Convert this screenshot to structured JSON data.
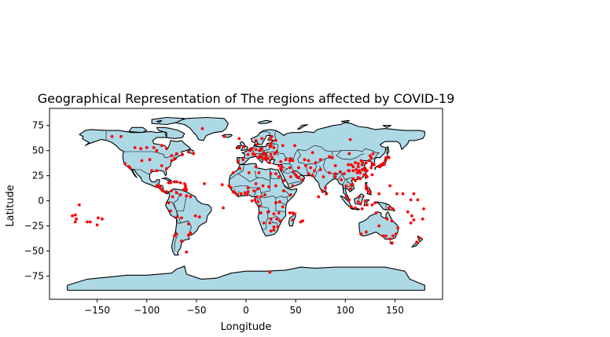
{
  "chart_data": {
    "type": "scatter",
    "title": "Geographical Representation of The regions affected by COVID-19",
    "xlabel": "Longitude",
    "ylabel": "Latitude",
    "xlim": [
      -198,
      198
    ],
    "ylim": [
      -98,
      92
    ],
    "xticks": [
      -150,
      -100,
      -50,
      0,
      50,
      100,
      150
    ],
    "yticks": [
      -75,
      -50,
      -25,
      0,
      25,
      50,
      75
    ],
    "xtick_labels": [
      "−150",
      "−100",
      "−50",
      "0",
      "50",
      "100",
      "150"
    ],
    "ytick_labels": [
      "−75",
      "−50",
      "−25",
      "0",
      "25",
      "50",
      "75"
    ],
    "grid": false,
    "basemap": {
      "land_color": "#add8e6",
      "edge_color": "#000000"
    },
    "series": [
      {
        "color": "#ff0000",
        "points": [
          [
            -135,
            64
          ],
          [
            -126,
            64
          ],
          [
            -112,
            53
          ],
          [
            -100,
            53
          ],
          [
            -93,
            53
          ],
          [
            -80,
            52
          ],
          [
            -70,
            47
          ],
          [
            -64,
            46
          ],
          [
            -58,
            49
          ],
          [
            -53,
            47
          ],
          [
            -85,
            55
          ],
          [
            -75,
            45
          ],
          [
            -90,
            50
          ],
          [
            -105,
            40
          ],
          [
            -97,
            41
          ],
          [
            -106,
            52
          ],
          [
            -85,
            35
          ],
          [
            -80,
            32
          ],
          [
            -90,
            30
          ],
          [
            -95,
            30
          ],
          [
            -75,
            40
          ],
          [
            -72,
            42
          ],
          [
            -122,
            37
          ],
          [
            -118,
            34
          ],
          [
            -117,
            33
          ],
          [
            -84,
            10
          ],
          [
            -88,
            15
          ],
          [
            -87,
            14
          ],
          [
            -90,
            15
          ],
          [
            -86,
            12
          ],
          [
            -80,
            9
          ],
          [
            -78,
            18
          ],
          [
            -76,
            18
          ],
          [
            -72,
            19
          ],
          [
            -70,
            19
          ],
          [
            -66,
            18
          ],
          [
            -61,
            15
          ],
          [
            -61,
            13
          ],
          [
            -62,
            17
          ],
          [
            -63,
            11
          ],
          [
            -60,
            11
          ],
          [
            -75,
            10
          ],
          [
            -74,
            4
          ],
          [
            -70,
            8
          ],
          [
            -66,
            6
          ],
          [
            -60,
            5
          ],
          [
            -56,
            4
          ],
          [
            -78,
            -2
          ],
          [
            -76,
            -10
          ],
          [
            -70,
            -16
          ],
          [
            -65,
            -17
          ],
          [
            -58,
            -23
          ],
          [
            -51,
            -15
          ],
          [
            -47,
            -16
          ],
          [
            -72,
            -35
          ],
          [
            -70,
            -33
          ],
          [
            -65,
            -40
          ],
          [
            -58,
            -34
          ],
          [
            -56,
            -32
          ],
          [
            -60,
            -51
          ],
          [
            -44,
            72
          ],
          [
            -42,
            17
          ],
          [
            -24,
            16
          ],
          [
            -23,
            -7
          ],
          [
            -7,
            62
          ],
          [
            -17,
            15
          ],
          [
            -15,
            13
          ],
          [
            -13,
            9
          ],
          [
            -11,
            8
          ],
          [
            -9,
            6
          ],
          [
            -5,
            7
          ],
          [
            -1,
            8
          ],
          [
            1,
            6
          ],
          [
            2,
            9
          ],
          [
            2,
            13
          ],
          [
            8,
            10
          ],
          [
            12,
            12
          ],
          [
            11,
            4
          ],
          [
            15,
            4
          ],
          [
            19,
            6
          ],
          [
            10,
            17
          ],
          [
            17,
            15
          ],
          [
            23,
            14
          ],
          [
            30,
            15
          ],
          [
            38,
            10
          ],
          [
            45,
            6
          ],
          [
            34,
            -1
          ],
          [
            30,
            -2
          ],
          [
            37,
            -6
          ],
          [
            33,
            -12
          ],
          [
            28,
            -13
          ],
          [
            25,
            -18
          ],
          [
            31,
            -18
          ],
          [
            18,
            -22
          ],
          [
            24,
            -22
          ],
          [
            28,
            -26
          ],
          [
            32,
            -26
          ],
          [
            25,
            -30
          ],
          [
            28,
            -29
          ],
          [
            34,
            -20
          ],
          [
            15,
            -12
          ],
          [
            22,
            -11
          ],
          [
            14,
            -5
          ],
          [
            12,
            -1
          ],
          [
            9,
            1
          ],
          [
            6,
            0
          ],
          [
            10,
            34
          ],
          [
            3,
            28
          ],
          [
            -6,
            32
          ],
          [
            -13,
            28
          ],
          [
            13,
            28
          ],
          [
            25,
            27
          ],
          [
            30,
            27
          ],
          [
            33,
            24
          ],
          [
            38,
            20
          ],
          [
            47,
            -19
          ],
          [
            57,
            -20
          ],
          [
            55,
            -21
          ],
          [
            47,
            -12
          ],
          [
            49,
            -13
          ],
          [
            44,
            -12
          ],
          [
            -22,
            64
          ],
          [
            -2,
            54
          ],
          [
            -8,
            53
          ],
          [
            -3,
            41
          ],
          [
            -8,
            39
          ],
          [
            2,
            46
          ],
          [
            4,
            50
          ],
          [
            6,
            52
          ],
          [
            10,
            51
          ],
          [
            14,
            50
          ],
          [
            16,
            52
          ],
          [
            18,
            48
          ],
          [
            20,
            47
          ],
          [
            25,
            46
          ],
          [
            22,
            42
          ],
          [
            24,
            38
          ],
          [
            26,
            43
          ],
          [
            14,
            45
          ],
          [
            16,
            44
          ],
          [
            12,
            43
          ],
          [
            9,
            46
          ],
          [
            7,
            47
          ],
          [
            11,
            56
          ],
          [
            10,
            60
          ],
          [
            16,
            62
          ],
          [
            25,
            61
          ],
          [
            26,
            64
          ],
          [
            25,
            57
          ],
          [
            24,
            55
          ],
          [
            25,
            54
          ],
          [
            28,
            53
          ],
          [
            31,
            49
          ],
          [
            29,
            47
          ],
          [
            20,
            44
          ],
          [
            18,
            42
          ],
          [
            20,
            41
          ],
          [
            21,
            42
          ],
          [
            33,
            35
          ],
          [
            35,
            39
          ],
          [
            40,
            41
          ],
          [
            44,
            40
          ],
          [
            45,
            42
          ],
          [
            47,
            40
          ],
          [
            30,
            60
          ],
          [
            37,
            55
          ],
          [
            49,
            55
          ],
          [
            35,
            32
          ],
          [
            36,
            34
          ],
          [
            36,
            31
          ],
          [
            44,
            33
          ],
          [
            45,
            24
          ],
          [
            51,
            25
          ],
          [
            50,
            26
          ],
          [
            53,
            23
          ],
          [
            57,
            21
          ],
          [
            48,
            29
          ],
          [
            47,
            15
          ],
          [
            53,
            33
          ],
          [
            60,
            35
          ],
          [
            65,
            33
          ],
          [
            69,
            30
          ],
          [
            70,
            38
          ],
          [
            63,
            40
          ],
          [
            59,
            41
          ],
          [
            67,
            48
          ],
          [
            75,
            41
          ],
          [
            75,
            31
          ],
          [
            78,
            24
          ],
          [
            80,
            13
          ],
          [
            77,
            10
          ],
          [
            81,
            7
          ],
          [
            84,
            28
          ],
          [
            90,
            27
          ],
          [
            90,
            24
          ],
          [
            96,
            21
          ],
          [
            101,
            15
          ],
          [
            105,
            12
          ],
          [
            106,
            16
          ],
          [
            107,
            16
          ],
          [
            101,
            4
          ],
          [
            104,
            1
          ],
          [
            106,
            -6
          ],
          [
            110,
            -7
          ],
          [
            113,
            -1
          ],
          [
            117,
            -8
          ],
          [
            120,
            0
          ],
          [
            122,
            -4
          ],
          [
            121,
            12
          ],
          [
            121,
            15
          ],
          [
            123,
            10
          ],
          [
            125,
            8
          ],
          [
            114,
            4
          ],
          [
            115,
            -3
          ],
          [
            127,
            -4
          ],
          [
            130,
            -2
          ],
          [
            105,
            61
          ],
          [
            104,
            47
          ],
          [
            110,
            38
          ],
          [
            113,
            37
          ],
          [
            116,
            40
          ],
          [
            117,
            36
          ],
          [
            113,
            34
          ],
          [
            106,
            36
          ],
          [
            103,
            36
          ],
          [
            108,
            34
          ],
          [
            103,
            30
          ],
          [
            104,
            30
          ],
          [
            108,
            30
          ],
          [
            112,
            28
          ],
          [
            115,
            28
          ],
          [
            117,
            31
          ],
          [
            119,
            32
          ],
          [
            120,
            30
          ],
          [
            119,
            26
          ],
          [
            113,
            23
          ],
          [
            110,
            20
          ],
          [
            108,
            22
          ],
          [
            115,
            22
          ],
          [
            114,
            30
          ],
          [
            111,
            31
          ],
          [
            122,
            30
          ],
          [
            121,
            38
          ],
          [
            124,
            40
          ],
          [
            126,
            43
          ],
          [
            125,
            45
          ],
          [
            128,
            47
          ],
          [
            117,
            39
          ],
          [
            121,
            25
          ],
          [
            122,
            24
          ],
          [
            127,
            37
          ],
          [
            129,
            36
          ],
          [
            126,
            33
          ],
          [
            127,
            26
          ],
          [
            134,
            34
          ],
          [
            136,
            36
          ],
          [
            135,
            34
          ],
          [
            139,
            36
          ],
          [
            138,
            37
          ],
          [
            140,
            40
          ],
          [
            141,
            43
          ],
          [
            144,
            43
          ],
          [
            87,
            43
          ],
          [
            90,
            35
          ],
          [
            84,
            44
          ],
          [
            99,
            27
          ],
          [
            95,
            29
          ],
          [
            73,
            4
          ],
          [
            67,
            25
          ],
          [
            63,
            27
          ],
          [
            134,
            -25
          ],
          [
            131,
            -12
          ],
          [
            121,
            -31
          ],
          [
            116,
            -33
          ],
          [
            138,
            -35
          ],
          [
            141,
            -35
          ],
          [
            145,
            -38
          ],
          [
            148,
            -35
          ],
          [
            151,
            -33
          ],
          [
            153,
            -27
          ],
          [
            147,
            -20
          ],
          [
            142,
            -18
          ],
          [
            147,
            -42
          ],
          [
            144,
            -7
          ],
          [
            148,
            -8
          ],
          [
            152,
            7
          ],
          [
            166,
            -22
          ],
          [
            163,
            -11
          ],
          [
            167,
            -15
          ],
          [
            169,
            -19
          ],
          [
            172,
            -41
          ],
          [
            175,
            -37
          ],
          [
            178,
            -18
          ],
          [
            179,
            -8
          ],
          [
            -175,
            -15
          ],
          [
            -172,
            -14
          ],
          [
            -171,
            -18
          ],
          [
            -160,
            -21
          ],
          [
            -172,
            -21
          ],
          [
            -157,
            -21
          ],
          [
            -168,
            -4
          ],
          [
            -150,
            -24
          ],
          [
            -149,
            -17
          ],
          [
            -145,
            -18
          ],
          [
            166,
            1
          ],
          [
            169,
            7
          ],
          [
            173,
            1
          ],
          [
            158,
            7
          ],
          [
            134,
            7
          ],
          [
            145,
            15
          ],
          [
            24,
            -71
          ]
        ]
      }
    ]
  }
}
